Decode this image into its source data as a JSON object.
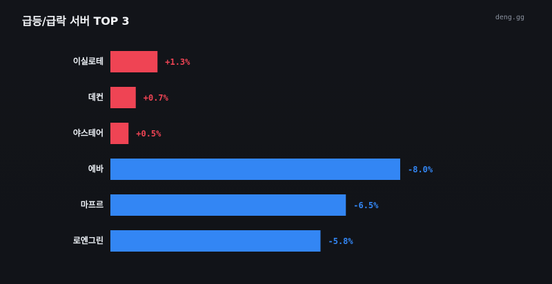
{
  "header": {
    "title": "급등/급락 서버 TOP 3",
    "brand": "deng.gg"
  },
  "chart_data": {
    "type": "bar",
    "orientation": "horizontal",
    "title": "급등/급락 서버 TOP 3",
    "categories": [
      "이실로테",
      "데컨",
      "야스테어",
      "에바",
      "마프르",
      "로엔그린"
    ],
    "values": [
      1.3,
      0.7,
      0.5,
      -8.0,
      -6.5,
      -5.8
    ],
    "value_labels": [
      "+1.3%",
      "+0.7%",
      "+0.5%",
      "-8.0%",
      "-6.5%",
      "-5.8%"
    ],
    "colors": {
      "positive": "#ef4454",
      "negative": "#3386f4"
    },
    "grid": false,
    "legend": "none"
  }
}
